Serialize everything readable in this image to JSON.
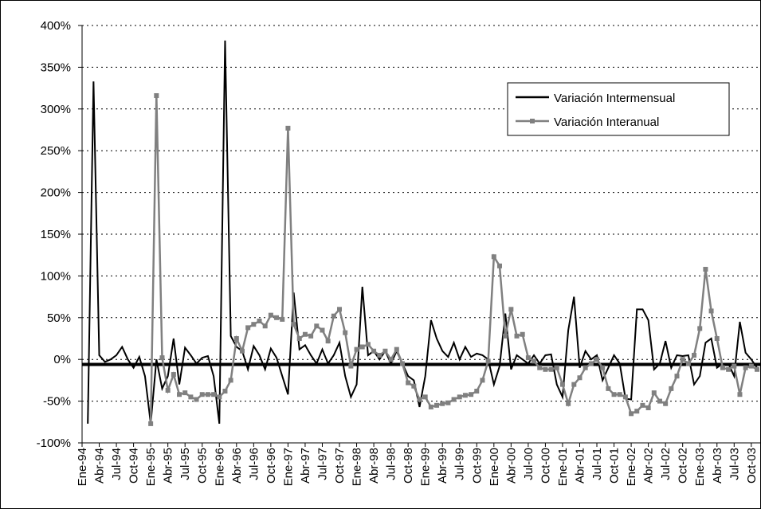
{
  "chart_data": {
    "type": "line",
    "categories": [
      "Ene-94",
      null,
      null,
      "Abr-94",
      null,
      null,
      "Jul-94",
      null,
      null,
      "Oct-94",
      null,
      null,
      "Ene-95",
      null,
      null,
      "Abr-95",
      null,
      null,
      "Jul-95",
      null,
      null,
      "Oct-95",
      null,
      null,
      "Ene-96",
      null,
      null,
      "Abr-96",
      null,
      null,
      "Jul-96",
      null,
      null,
      "Oct-96",
      null,
      null,
      "Ene-97",
      null,
      null,
      "Abr-97",
      null,
      null,
      "Jul-97",
      null,
      null,
      "Oct-97",
      null,
      null,
      "Ene-98",
      null,
      null,
      "Abr-98",
      null,
      null,
      "Jul-98",
      null,
      null,
      "Oct-98",
      null,
      null,
      "Ene-99",
      null,
      null,
      "Abr-99",
      null,
      null,
      "Jul-99",
      null,
      null,
      "Oct-99",
      null,
      null,
      "Ene-00",
      null,
      null,
      "Abr-00",
      null,
      null,
      "Jul-00",
      null,
      null,
      "Oct-00",
      null,
      null,
      "Ene-01",
      null,
      null,
      "Abr-01",
      null,
      null,
      "Jul-01",
      null,
      null,
      "Oct-01",
      null,
      null,
      "Ene-02",
      null,
      null,
      "Abr-02",
      null,
      null,
      "Jul-02",
      null,
      null,
      "Oct-02",
      null,
      null,
      "Ene-03",
      null,
      null,
      "Abr-03",
      null,
      null,
      "Jul-03",
      null,
      null,
      "Oct-03",
      null
    ],
    "series": [
      {
        "name": "Variación Intermensual",
        "color": "#000000",
        "marker": false,
        "values": [
          null,
          -77,
          333,
          5,
          -3,
          0,
          5,
          15,
          0,
          -10,
          3,
          -20,
          -77,
          0,
          -35,
          -20,
          25,
          -30,
          14,
          5,
          -5,
          2,
          4,
          -20,
          -77,
          382,
          28,
          15,
          10,
          -12,
          16,
          5,
          -12,
          13,
          2,
          -20,
          -42,
          80,
          12,
          17,
          5,
          -5,
          12,
          -5,
          5,
          20,
          -20,
          -45,
          -30,
          87,
          5,
          10,
          0,
          10,
          -5,
          10,
          -5,
          -20,
          -25,
          -57,
          -20,
          47,
          25,
          10,
          3,
          20,
          0,
          15,
          3,
          7,
          5,
          0,
          -30,
          -8,
          55,
          -12,
          5,
          0,
          -5,
          5,
          -5,
          5,
          6,
          -30,
          -45,
          35,
          75,
          -10,
          10,
          0,
          5,
          -25,
          -10,
          5,
          -5,
          -47,
          -48,
          60,
          60,
          47,
          -12,
          -5,
          22,
          -10,
          5,
          4,
          5,
          -30,
          -20,
          20,
          25,
          -10,
          -5,
          -5,
          -20,
          45,
          8,
          0,
          -10
        ]
      },
      {
        "name": "Variación Interanual",
        "color": "#808080",
        "marker": true,
        "values": [
          null,
          null,
          null,
          null,
          null,
          null,
          null,
          null,
          null,
          null,
          null,
          null,
          -77,
          316,
          2,
          -37,
          -18,
          -42,
          -40,
          -45,
          -48,
          -42,
          -42,
          -42,
          -45,
          -38,
          -25,
          25,
          10,
          38,
          42,
          46,
          40,
          53,
          50,
          48,
          277,
          42,
          25,
          30,
          28,
          40,
          35,
          22,
          52,
          60,
          32,
          -8,
          12,
          15,
          18,
          10,
          5,
          10,
          0,
          12,
          -5,
          -28,
          -32,
          -48,
          -45,
          -57,
          -55,
          -53,
          -52,
          -48,
          -45,
          -43,
          -42,
          -38,
          -25,
          -2,
          123,
          112,
          28,
          60,
          28,
          30,
          2,
          -2,
          -10,
          -12,
          -12,
          -10,
          -30,
          -53,
          -30,
          -22,
          -10,
          -5,
          0,
          -10,
          -35,
          -42,
          -42,
          -45,
          -65,
          -62,
          -55,
          -58,
          -40,
          -50,
          -53,
          -35,
          -20,
          0,
          -5,
          5,
          37,
          108,
          58,
          25,
          -10,
          -12,
          -8,
          -42,
          -10,
          -8,
          -12
        ]
      }
    ],
    "ylim": [
      -100,
      400
    ],
    "yticks": [
      {
        "value": -100,
        "label": "-100%"
      },
      {
        "value": -50,
        "label": "-50%"
      },
      {
        "value": 0,
        "label": "0%"
      },
      {
        "value": 50,
        "label": "50%"
      },
      {
        "value": 100,
        "label": "100%"
      },
      {
        "value": 150,
        "label": "150%"
      },
      {
        "value": 200,
        "label": "200%"
      },
      {
        "value": 250,
        "label": "250%"
      },
      {
        "value": 300,
        "label": "300%"
      },
      {
        "value": 350,
        "label": "350%"
      },
      {
        "value": 400,
        "label": "400%"
      }
    ],
    "reference_line": -6,
    "grid": true,
    "legend": "upper right"
  }
}
